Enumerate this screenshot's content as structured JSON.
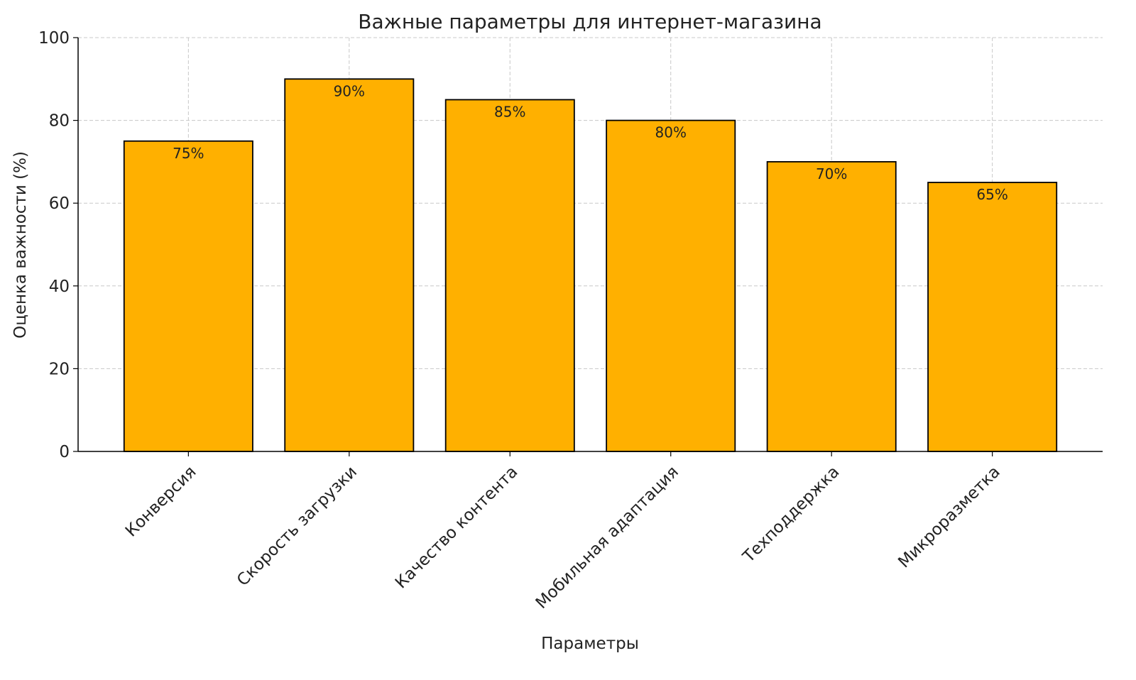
{
  "chart_data": {
    "type": "bar",
    "title": "Важные параметры для интернет-магазина",
    "xlabel": "Параметры",
    "ylabel": "Оценка важности (%)",
    "categories": [
      "Конверсия",
      "Скорость загрузки",
      "Качество контента",
      "Мобильная адаптация",
      "Техподдержка",
      "Микроразметка"
    ],
    "values": [
      75,
      90,
      85,
      80,
      70,
      65
    ],
    "data_labels": [
      "75%",
      "90%",
      "85%",
      "80%",
      "70%",
      "65%"
    ],
    "ylim": [
      0,
      100
    ],
    "yticks": [
      "0",
      "20",
      "40",
      "60",
      "80",
      "100"
    ],
    "grid": true,
    "bar_color": "#FFB000",
    "edge_color": "#000000"
  }
}
